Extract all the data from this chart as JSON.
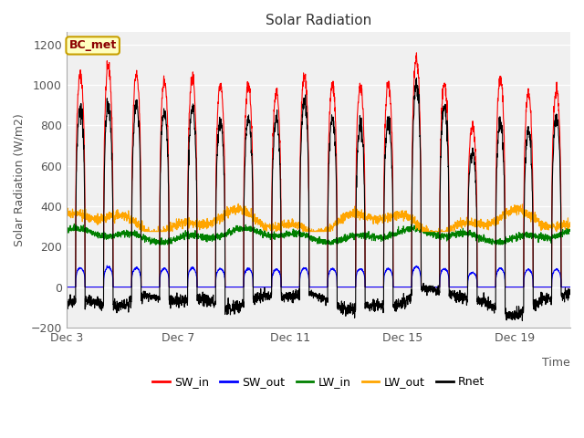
{
  "title": "Solar Radiation",
  "ylabel": "Solar Radiation (W/m2)",
  "xlabel": "Time",
  "ylim": [
    -200,
    1260
  ],
  "yticks": [
    -200,
    0,
    200,
    400,
    600,
    800,
    1000,
    1200
  ],
  "station_label": "BC_met",
  "x_tick_labels": [
    "Dec 3",
    "Dec 7",
    "Dec 11",
    "Dec 15",
    "Dec 19"
  ],
  "x_tick_positions": [
    0,
    4,
    8,
    12,
    16
  ],
  "legend_entries": [
    "SW_in",
    "SW_out",
    "LW_in",
    "LW_out",
    "Rnet"
  ],
  "line_colors": [
    "red",
    "blue",
    "green",
    "orange",
    "black"
  ],
  "background_color": "#e0e0e0",
  "plot_bg_color": "#f0f0f0",
  "n_days": 18,
  "seed": 42,
  "day_peak_SW": [
    1050,
    1090,
    1050,
    1020,
    1040,
    1000,
    1000,
    960,
    1040,
    1000,
    990,
    1000,
    1130,
    1000,
    800,
    1030,
    960,
    970
  ],
  "figsize": [
    6.4,
    4.8
  ],
  "dpi": 100
}
